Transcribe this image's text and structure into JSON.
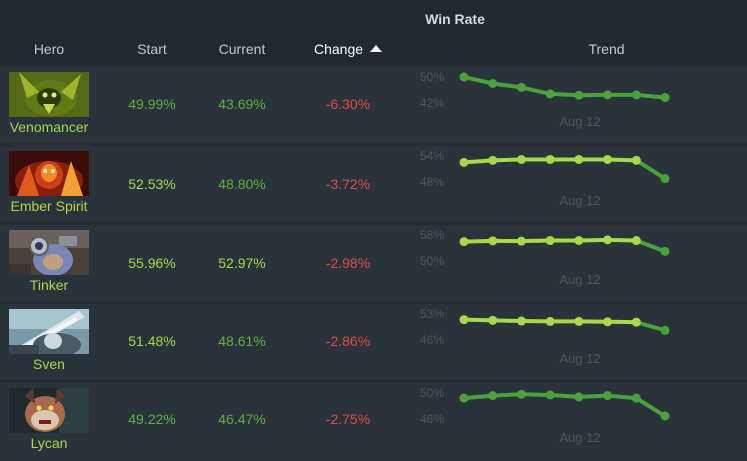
{
  "table": {
    "group_title": "Win Rate",
    "columns": {
      "hero": "Hero",
      "start": "Start",
      "current": "Current",
      "change": "Change",
      "trend": "Trend"
    },
    "sort": {
      "column": "change",
      "direction": "ascending"
    }
  },
  "colors": {
    "background": "#242d36",
    "row": "#2a333c",
    "header": "#202830",
    "name": "#a9d84a",
    "start_text": "#a9d84a",
    "current_text": "#5eb044",
    "change_text": "#e04b46",
    "trend_start": "#a9d84a",
    "trend_dark": "#49a23a"
  },
  "rows": [
    {
      "hero": "Venomancer",
      "portrait_icon": "venomancer-portrait-icon",
      "start": "49.99%",
      "current": "43.69%",
      "change": "-6.30%",
      "trend": {
        "max_label": "50%",
        "min_label": "42%",
        "date": "Aug 12",
        "values": [
          49.99,
          48.0,
          46.8,
          44.8,
          44.4,
          44.5,
          44.5,
          43.69
        ]
      },
      "colors": {
        "start": "#5eb044",
        "trend_line": "#49a23a"
      }
    },
    {
      "hero": "Ember Spirit",
      "portrait_icon": "ember-spirit-portrait-icon",
      "start": "52.53%",
      "current": "48.80%",
      "change": "-3.72%",
      "trend": {
        "max_label": "54%",
        "min_label": "48%",
        "date": "Aug 12",
        "values": [
          52.53,
          53.0,
          53.2,
          53.2,
          53.2,
          53.2,
          53.0,
          48.8
        ]
      },
      "colors": {
        "start": "#a9d84a",
        "trend_line": "#a9d84a"
      }
    },
    {
      "hero": "Tinker",
      "portrait_icon": "tinker-portrait-icon",
      "start": "55.96%",
      "current": "52.97%",
      "change": "-2.98%",
      "trend": {
        "max_label": "58%",
        "min_label": "50%",
        "date": "Aug 12",
        "values": [
          55.96,
          56.2,
          56.1,
          56.3,
          56.3,
          56.5,
          56.3,
          52.97
        ]
      },
      "colors": {
        "start": "#a9d84a",
        "trend_line": "#a9d84a"
      }
    },
    {
      "hero": "Sven",
      "portrait_icon": "sven-portrait-icon",
      "start": "51.48%",
      "current": "48.61%",
      "change": "-2.86%",
      "trend": {
        "max_label": "53%",
        "min_label": "46%",
        "date": "Aug 12",
        "values": [
          51.48,
          51.3,
          51.1,
          51.0,
          51.0,
          50.9,
          50.8,
          48.61
        ]
      },
      "colors": {
        "start": "#a9d84a",
        "trend_line": "#a9d84a"
      }
    },
    {
      "hero": "Lycan",
      "portrait_icon": "lycan-portrait-icon",
      "start": "49.22%",
      "current": "46.47%",
      "change": "-2.75%",
      "trend": {
        "max_label": "50%",
        "min_label": "46%",
        "date": "Aug 12",
        "values": [
          49.22,
          49.6,
          49.8,
          49.7,
          49.4,
          49.6,
          49.2,
          46.47
        ]
      },
      "colors": {
        "start": "#5eb044",
        "trend_line": "#49a23a"
      }
    }
  ]
}
